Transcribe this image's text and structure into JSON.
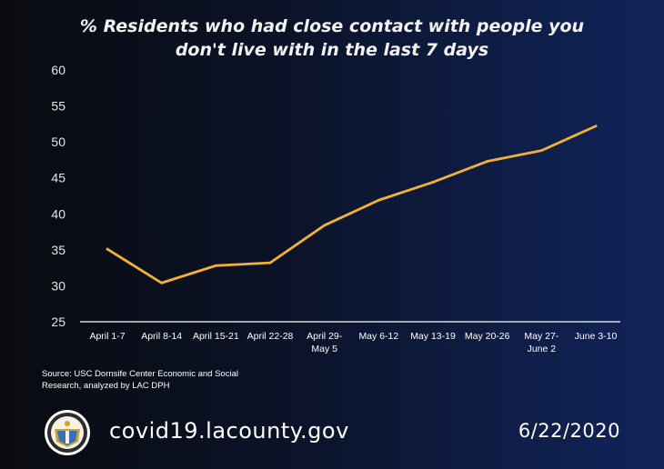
{
  "chart_data": {
    "type": "line",
    "title_line1": "% Residents who had close contact with people you",
    "title_line2": "don't live with in the last 7 days",
    "categories": [
      [
        "April 1-7"
      ],
      [
        "April 8-14"
      ],
      [
        "April 15-21"
      ],
      [
        "April 22-28"
      ],
      [
        "April 29-",
        "May 5"
      ],
      [
        "May 6-12"
      ],
      [
        "May 13-19"
      ],
      [
        "May 20-26"
      ],
      [
        "May 27-",
        "June 2"
      ],
      [
        "June 3-10"
      ]
    ],
    "series": [
      {
        "values": [
          35.1,
          30.4,
          32.8,
          33.2,
          38.4,
          41.9,
          44.4,
          47.3,
          48.8,
          52.2
        ]
      }
    ],
    "ylim": [
      25,
      60
    ],
    "yticks": [
      25,
      30,
      35,
      40,
      45,
      50,
      55,
      60
    ],
    "grid": false,
    "line_color": "#f2b134"
  },
  "footer": {
    "source": "Source: USC Dornsife Center Economic and Social Research, analyzed by LAC DPH",
    "url": "covid19.lacounty.gov",
    "date": "6/22/2020"
  },
  "logo": {
    "icon": "county-seal-icon"
  }
}
